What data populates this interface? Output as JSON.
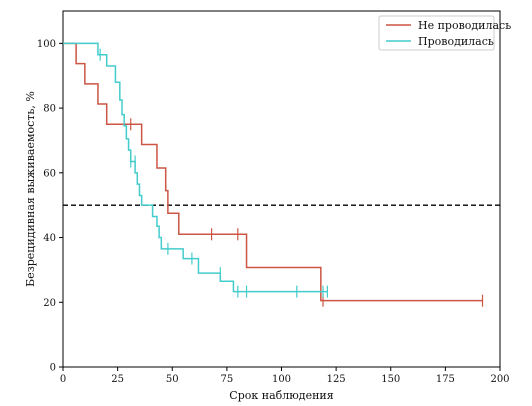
{
  "chart_data": {
    "type": "line",
    "xlabel": "Срок наблюдения",
    "ylabel": "Безрецидивная выживаемость, %",
    "xlim": [
      0,
      200
    ],
    "ylim": [
      0,
      110
    ],
    "xticks": [
      0,
      25,
      50,
      75,
      100,
      125,
      150,
      175,
      200
    ],
    "yticks": [
      0,
      20,
      40,
      60,
      80,
      100
    ],
    "grid": false,
    "legend_position": "top-right",
    "reference_line": {
      "y": 50,
      "style": "dashed",
      "color": "#000000"
    },
    "series": [
      {
        "name": "Не проводилась",
        "color": "#cc5544",
        "steps": [
          [
            0,
            100
          ],
          [
            6,
            93.75
          ],
          [
            10,
            87.5
          ],
          [
            16,
            81.25
          ],
          [
            20,
            75
          ],
          [
            36,
            68.75
          ],
          [
            43,
            61.5
          ],
          [
            47,
            54.5
          ],
          [
            48,
            47.5
          ],
          [
            53,
            41
          ],
          [
            84,
            30.75
          ],
          [
            118,
            20.5
          ],
          [
            192,
            20.5
          ]
        ],
        "censored": [
          [
            31,
            75
          ],
          [
            68,
            41
          ],
          [
            80,
            41
          ],
          [
            119,
            20.5
          ],
          [
            192,
            20.5
          ]
        ]
      },
      {
        "name": "Проводилась",
        "color": "#44cccc",
        "steps": [
          [
            0,
            100
          ],
          [
            16,
            96.5
          ],
          [
            20,
            93
          ],
          [
            24,
            88
          ],
          [
            26,
            82.5
          ],
          [
            27,
            78
          ],
          [
            28,
            74.5
          ],
          [
            29,
            70.5
          ],
          [
            30,
            67
          ],
          [
            31,
            63.5
          ],
          [
            33,
            60
          ],
          [
            34,
            56.5
          ],
          [
            35,
            53
          ],
          [
            36,
            50
          ],
          [
            41,
            46.5
          ],
          [
            43,
            43.5
          ],
          [
            44,
            40
          ],
          [
            45,
            36.5
          ],
          [
            55,
            33.5
          ],
          [
            62,
            29
          ],
          [
            72,
            26.5
          ],
          [
            78,
            23.3
          ],
          [
            121,
            23.3
          ]
        ],
        "censored": [
          [
            17,
            96.5
          ],
          [
            31,
            63.5
          ],
          [
            33,
            63.5
          ],
          [
            48,
            36.5
          ],
          [
            59,
            33.5
          ],
          [
            72,
            29
          ],
          [
            80,
            23.3
          ],
          [
            84,
            23.3
          ],
          [
            107,
            23.3
          ],
          [
            119,
            23.3
          ],
          [
            121,
            23.3
          ]
        ]
      }
    ]
  }
}
